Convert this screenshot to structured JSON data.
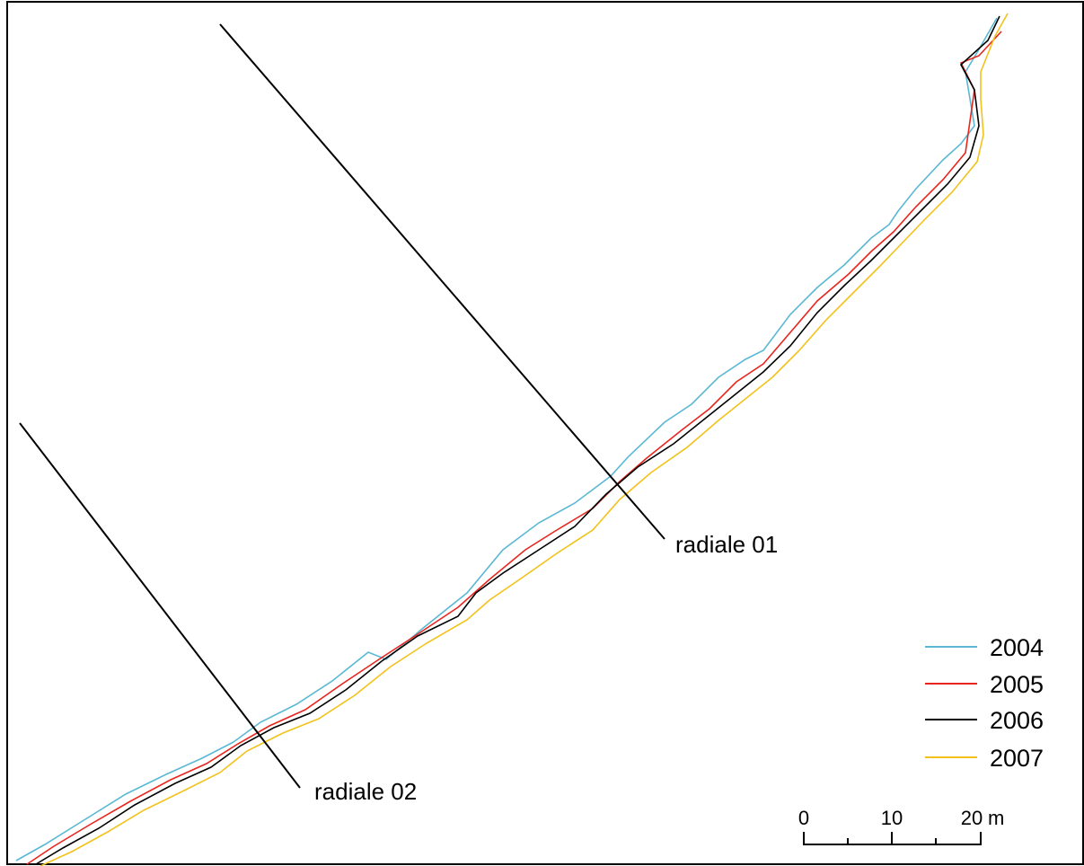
{
  "transects": [
    {
      "id": "r01",
      "label": "radiale 01"
    },
    {
      "id": "r02",
      "label": "radiale 02"
    }
  ],
  "legend": [
    {
      "year": "2004",
      "color": "#5ab8d4"
    },
    {
      "year": "2005",
      "color": "#e8261f"
    },
    {
      "year": "2006",
      "color": "#000000"
    },
    {
      "year": "2007",
      "color": "#f2c21b"
    }
  ],
  "scale_bar": {
    "ticks": [
      "0",
      "10",
      "20"
    ],
    "unit": "m"
  }
}
